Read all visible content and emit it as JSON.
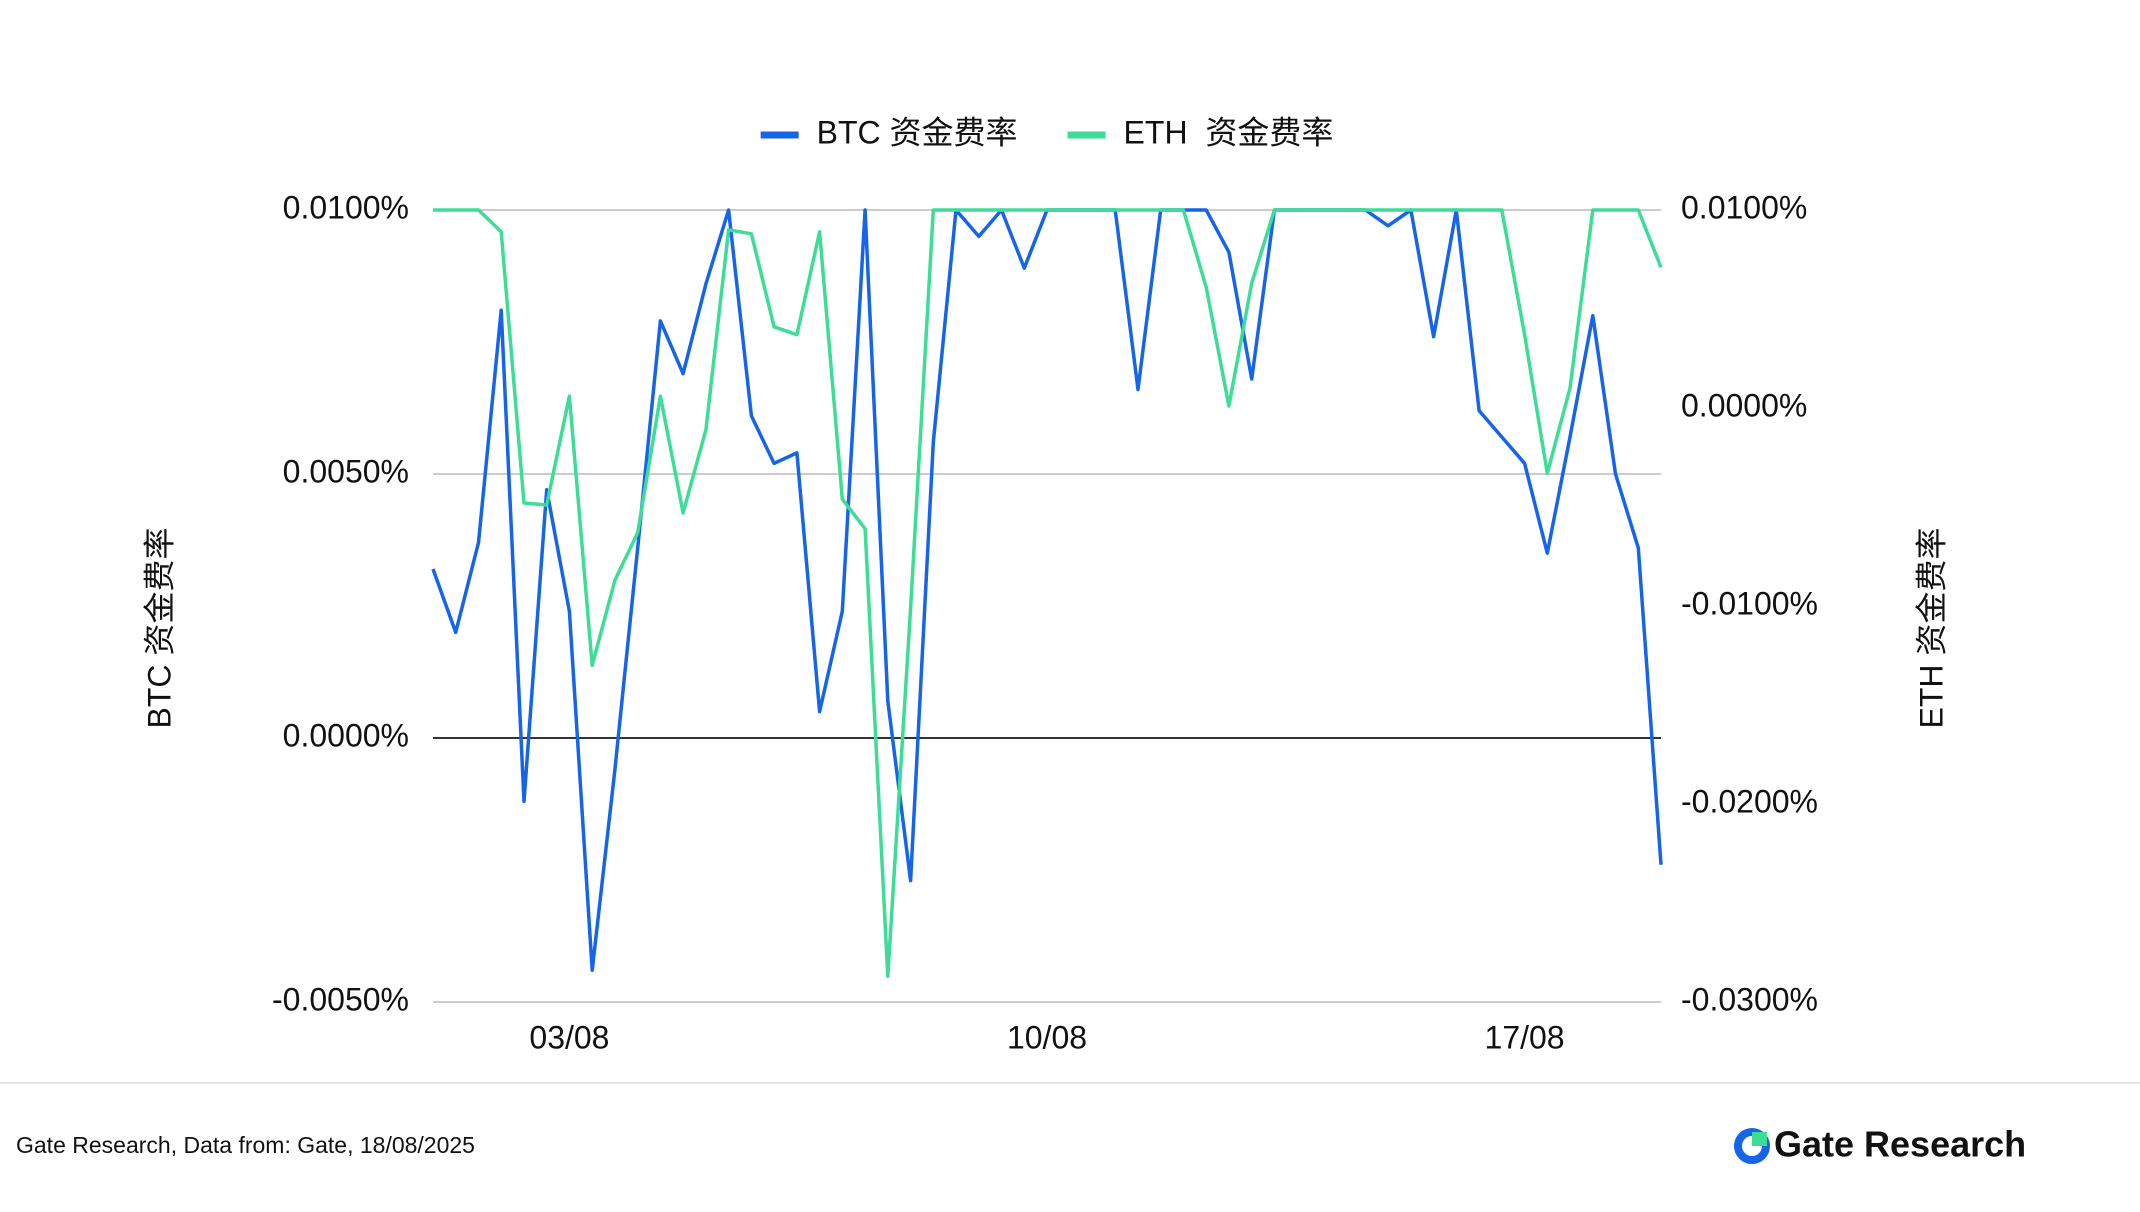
{
  "chart_data": {
    "type": "line",
    "categories": [
      null,
      null,
      null,
      null,
      null,
      null,
      "03/08",
      null,
      null,
      null,
      null,
      null,
      null,
      null,
      null,
      null,
      null,
      null,
      null,
      null,
      null,
      null,
      null,
      null,
      null,
      null,
      null,
      "10/08",
      null,
      null,
      null,
      null,
      null,
      null,
      null,
      null,
      null,
      null,
      null,
      null,
      null,
      null,
      null,
      null,
      null,
      null,
      null,
      null,
      "17/08",
      null,
      null,
      null,
      null,
      null,
      null
    ],
    "series": [
      {
        "name": "BTC 资金费率",
        "color": "#1664e8",
        "axis": "y",
        "values": [
          0.0032,
          0.002,
          0.0037,
          0.0081,
          -0.0012,
          0.0047,
          0.0024,
          -0.0044,
          -0.0006,
          0.0036,
          0.0079,
          0.0069,
          0.0086,
          0.01,
          0.0061,
          0.0052,
          0.0054,
          0.0005,
          0.0024,
          0.01,
          0.0007,
          -0.0027,
          0.0056,
          0.01,
          0.0095,
          0.01,
          0.0089,
          0.01,
          0.01,
          0.01,
          0.01,
          0.0066,
          0.01,
          0.01,
          0.01,
          0.0092,
          0.0068,
          0.01,
          0.01,
          0.01,
          0.01,
          0.01,
          0.0097,
          0.01,
          0.0076,
          0.01,
          0.0062,
          0.0057,
          0.0052,
          0.0035,
          0.0057,
          0.008,
          0.005,
          0.0036,
          -0.0024
        ]
      },
      {
        "name": "ETH  资金费率",
        "color": "#3ddc97",
        "axis": "y2",
        "values": [
          0.01,
          0.01,
          0.01,
          0.0089,
          -0.0048,
          -0.0049,
          0.0006,
          -0.013,
          -0.0087,
          -0.0063,
          0.0006,
          -0.0053,
          -0.0011,
          0.009,
          0.0088,
          0.0041,
          0.0037,
          0.0089,
          -0.0046,
          -0.0061,
          -0.0287,
          -0.0101,
          0.01,
          0.01,
          0.01,
          0.01,
          0.01,
          0.01,
          0.01,
          0.01,
          0.01,
          0.01,
          0.01,
          0.01,
          0.0061,
          0.0001,
          0.0063,
          0.01,
          0.01,
          0.01,
          0.01,
          0.01,
          0.01,
          0.01,
          0.01,
          0.01,
          0.01,
          0.01,
          0.0037,
          -0.0033,
          0.001,
          0.01,
          0.01,
          0.01,
          0.0071
        ]
      }
    ],
    "ylabel": "BTC 资金费率",
    "y2label": "ETH 资金费率",
    "ylim": [
      -0.005,
      0.01
    ],
    "yticks": [
      {
        "value": -0.005,
        "label": "-0.0050%"
      },
      {
        "value": 0,
        "label": "0.0000%"
      },
      {
        "value": 0.005,
        "label": "0.0050%"
      },
      {
        "value": 0.01,
        "label": "0.0100%"
      }
    ],
    "y2lim": [
      -0.03,
      0.01
    ],
    "y2ticks": [
      {
        "value": -0.03,
        "label": "-0.0300%"
      },
      {
        "value": -0.02,
        "label": "-0.0200%"
      },
      {
        "value": -0.01,
        "label": "-0.0100%"
      },
      {
        "value": 0,
        "label": "0.0000%"
      },
      {
        "value": 0.01,
        "label": "0.0100%"
      }
    ],
    "grid": true,
    "legend": "top"
  },
  "footer": {
    "source": "Gate Research, Data from: Gate, 18/08/2025",
    "brand": "Gate Research"
  }
}
